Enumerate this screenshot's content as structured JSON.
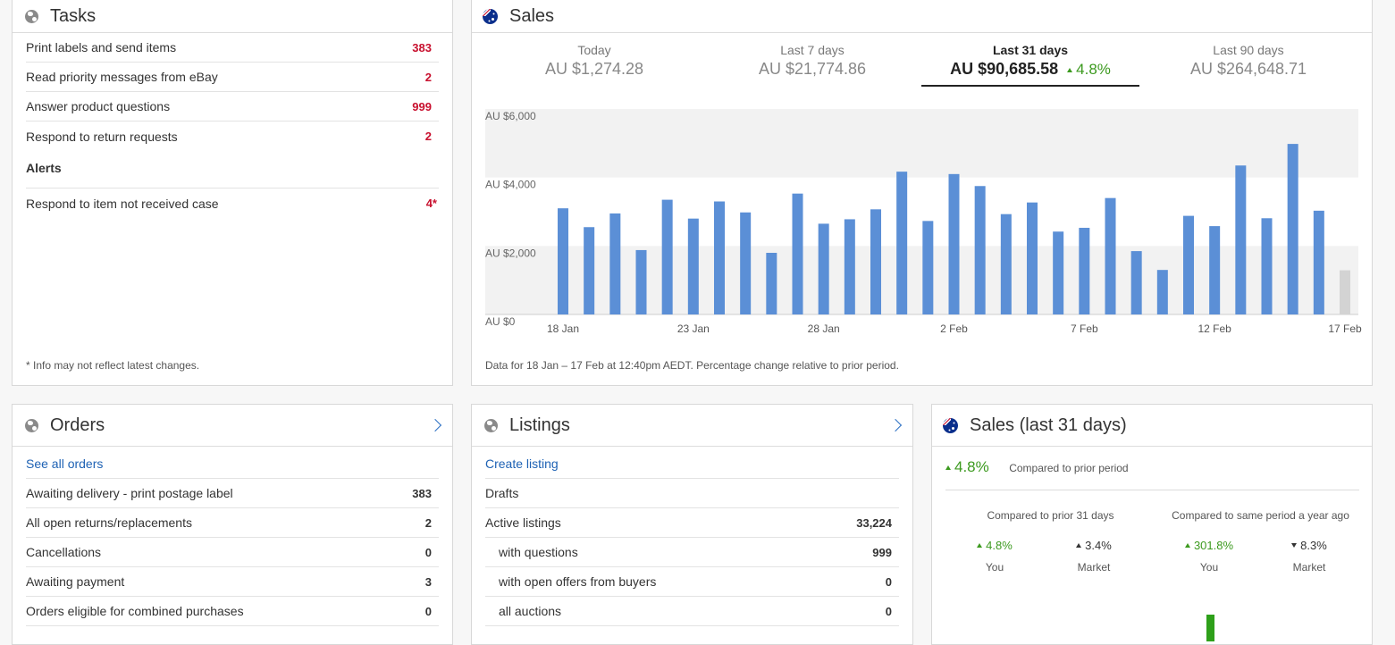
{
  "tasks": {
    "title": "Tasks",
    "items": [
      {
        "label": "Print labels and send items",
        "count": "383"
      },
      {
        "label": "Read priority messages from eBay",
        "count": "2"
      },
      {
        "label": "Answer product questions",
        "count": "999"
      },
      {
        "label": "Respond to return requests",
        "count": "2"
      }
    ],
    "alerts_heading": "Alerts",
    "alerts": [
      {
        "label": "Respond to item not received case",
        "count": "4*"
      }
    ],
    "footnote": "* Info may not reflect latest changes."
  },
  "sales": {
    "title": "Sales",
    "periods": [
      {
        "label": "Today",
        "amount": "AU $1,274.28"
      },
      {
        "label": "Last 7 days",
        "amount": "AU $21,774.86"
      },
      {
        "label": "Last 31 days",
        "amount": "AU $90,685.58",
        "change": "4.8%"
      },
      {
        "label": "Last 90 days",
        "amount": "AU $264,648.71"
      }
    ],
    "footnote": "Data for 18 Jan – 17 Feb at 12:40pm AEDT. Percentage change relative to prior period."
  },
  "chart_data": {
    "type": "bar",
    "title": "",
    "xlabel": "",
    "ylabel": "",
    "ylim": [
      0,
      6000
    ],
    "y_ticks": [
      "AU $6,000",
      "AU $4,000",
      "AU $2,000",
      "AU $0"
    ],
    "y_tick_values": [
      6000,
      4000,
      2000,
      0
    ],
    "x_tick_labels": [
      "18 Jan",
      "23 Jan",
      "28 Jan",
      "2 Feb",
      "7 Feb",
      "12 Feb",
      "17 Feb"
    ],
    "x_tick_indices": [
      0,
      5,
      10,
      15,
      20,
      25,
      30
    ],
    "categories": [
      "18 Jan",
      "19 Jan",
      "20 Jan",
      "21 Jan",
      "22 Jan",
      "23 Jan",
      "24 Jan",
      "25 Jan",
      "26 Jan",
      "27 Jan",
      "28 Jan",
      "29 Jan",
      "30 Jan",
      "31 Jan",
      "1 Feb",
      "2 Feb",
      "3 Feb",
      "4 Feb",
      "5 Feb",
      "6 Feb",
      "7 Feb",
      "8 Feb",
      "9 Feb",
      "10 Feb",
      "11 Feb",
      "12 Feb",
      "13 Feb",
      "14 Feb",
      "15 Feb",
      "16 Feb",
      "17 Feb"
    ],
    "values": [
      3100,
      2550,
      2950,
      1880,
      3350,
      2800,
      3300,
      2980,
      1800,
      3530,
      2650,
      2780,
      3070,
      4170,
      2730,
      4100,
      3750,
      2930,
      3270,
      2420,
      2530,
      3400,
      1850,
      1300,
      2880,
      2580,
      4350,
      2810,
      4980,
      3030,
      1290
    ],
    "bar_color": "#5b8fd6",
    "partial_bar_color": "#d3d3d3"
  },
  "orders": {
    "title": "Orders",
    "link": "See all orders",
    "items": [
      {
        "label": "Awaiting delivery - print postage label",
        "count": "383"
      },
      {
        "label": "All open returns/replacements",
        "count": "2"
      },
      {
        "label": "Cancellations",
        "count": "0"
      },
      {
        "label": "Awaiting payment",
        "count": "3"
      },
      {
        "label": "Orders eligible for combined purchases",
        "count": "0"
      }
    ]
  },
  "listings": {
    "title": "Listings",
    "link": "Create listing",
    "items": [
      {
        "label": "Drafts",
        "count": ""
      },
      {
        "label": "Active listings",
        "count": "33,224"
      },
      {
        "label": "with questions",
        "count": "999"
      },
      {
        "label": "with open offers from buyers",
        "count": "0"
      },
      {
        "label": "all auctions",
        "count": "0"
      }
    ]
  },
  "sales31": {
    "title": "Sales (last 31 days)",
    "change": "4.8%",
    "compared": "Compared to prior period",
    "col1_heading": "Compared to prior 31 days",
    "col2_heading": "Compared to same period a year ago",
    "you1": "4.8%",
    "market1": "3.4%",
    "you2": "301.8%",
    "market2": "8.3%",
    "you_label": "You",
    "market_label": "Market"
  }
}
